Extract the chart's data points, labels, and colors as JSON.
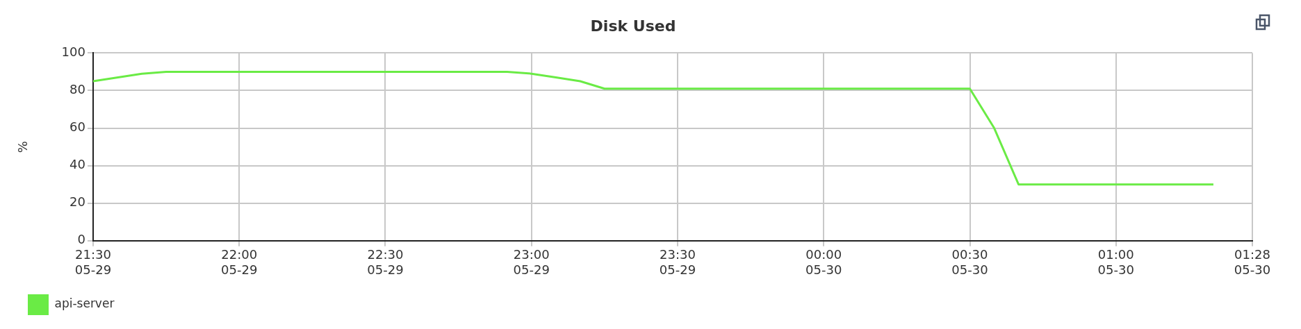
{
  "chart_data": {
    "type": "line",
    "title": "Disk Used",
    "ylabel": "%",
    "x": [
      "--05-29T21:30",
      "--05-29T21:40",
      "--05-29T21:45",
      "--05-29T22:55",
      "--05-29T23:00",
      "--05-29T23:05",
      "--05-29T23:10",
      "--05-29T23:15",
      "--05-30T00:30",
      "--05-30T00:35",
      "--05-30T00:40",
      "--05-30T01:20"
    ],
    "series": [
      {
        "name": "api-server",
        "color": "#6aeb45",
        "values": [
          85,
          89,
          90,
          90,
          89,
          87,
          85,
          81,
          81,
          60,
          30,
          30
        ]
      }
    ],
    "xlim": [
      "--05-29T21:30",
      "--05-30T01:28"
    ],
    "xticks": [
      {
        "value": "--05-29T21:30",
        "label": "21:30\n05-29"
      },
      {
        "value": "--05-29T22:00",
        "label": "22:00\n05-29"
      },
      {
        "value": "--05-29T22:30",
        "label": "22:30\n05-29"
      },
      {
        "value": "--05-29T23:00",
        "label": "23:00\n05-29"
      },
      {
        "value": "--05-29T23:30",
        "label": "23:30\n05-29"
      },
      {
        "value": "--05-30T00:00",
        "label": "00:00\n05-30"
      },
      {
        "value": "--05-30T00:30",
        "label": "00:30\n05-30"
      },
      {
        "value": "--05-30T01:00",
        "label": "01:00\n05-30"
      },
      {
        "value": "--05-30T01:28",
        "label": "01:28\n05-30"
      }
    ],
    "ylim": [
      0,
      100
    ],
    "yticks": [
      0,
      20,
      40,
      60,
      80,
      100
    ],
    "grid": true,
    "legend": "bottom left",
    "marker": "none",
    "line_style": "solid"
  }
}
